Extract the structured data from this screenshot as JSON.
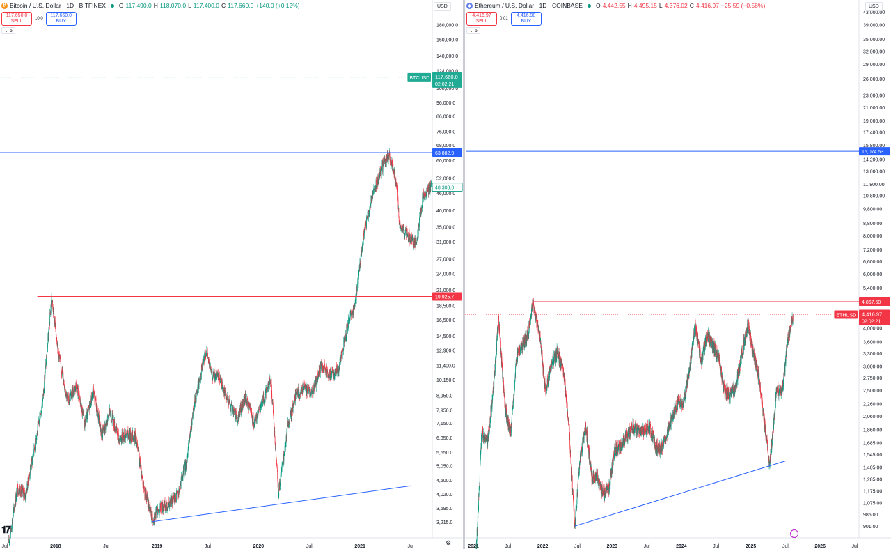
{
  "btc": {
    "symbol": "Bitcoin / U.S. Dollar · 1D · BITFINEX",
    "icon": "bitcoin-icon",
    "ohlc": {
      "o": "117,490.0",
      "h": "118,070.0",
      "l": "117,400.0",
      "c": "117,660.0",
      "chg": "+140.0 (+0.12%)"
    },
    "sell_price": "117,650.0",
    "sell_label": "SELL",
    "spread": "10.0",
    "buy_price": "117,660.0",
    "buy_label": "BUY",
    "indicator_count": "6",
    "currency": "USD"
  },
  "eth": {
    "symbol": "Ethereum / U.S. Dollar · 1D · COINBASE",
    "icon": "ethereum-icon",
    "ohlc": {
      "o": "4,442.55",
      "h": "4,495.15",
      "l": "4,376.02",
      "c": "4,416.97",
      "chg": "−25.59 (−0.58%)"
    },
    "sell_price": "4,416.97",
    "sell_label": "SELL",
    "spread": "0.01",
    "buy_price": "4,416.98",
    "buy_label": "BUY",
    "indicator_count": "6",
    "currency": "USD"
  },
  "colors": {
    "up": "#089981",
    "down": "#f23645",
    "blue": "#2962ff",
    "red": "#f23645",
    "green": "#22ab94"
  },
  "chart_data": [
    {
      "type": "candlestick",
      "title": "Bitcoin / U.S. Dollar · 1D · BITFINEX",
      "scale": "log",
      "ylim": [
        2950,
        215000
      ],
      "x_ticks": [
        "Jul",
        "2018",
        "Jul",
        "2019",
        "Jul",
        "2020",
        "Jul",
        "2021",
        "Jul"
      ],
      "y_ticks": [
        "180,000.0",
        "160,000.0",
        "140,000.0",
        "124,000.0",
        "108,000.0",
        "96,000.0",
        "86,000.0",
        "76,000.0",
        "68,000.0",
        "60,000.0",
        "52,000.0",
        "46,000.0",
        "40,000.0",
        "35,000.0",
        "31,000.0",
        "27,000.0",
        "24,000.0",
        "21,000.0",
        "18,500.0",
        "16,500.0",
        "14,500.0",
        "12,900.0",
        "11,400.0",
        "10,150.0",
        "8,950.0",
        "7,950.0",
        "7,150.0",
        "6,350.0",
        "5,650.0",
        "5,050.0",
        "4,500.0",
        "4,020.0",
        "3,595.0",
        "3,215.0"
      ],
      "y_tick_values": [
        180000,
        160000,
        140000,
        124000,
        108000,
        96000,
        86000,
        76000,
        68000,
        60000,
        52000,
        46000,
        40000,
        35000,
        31000,
        27000,
        24000,
        21000,
        18500,
        16500,
        14500,
        12900,
        11400,
        10150,
        8950,
        7950,
        7150,
        6350,
        5650,
        5050,
        4500,
        4020,
        3595,
        3215
      ],
      "price_path": [
        [
          "2017-07",
          2700
        ],
        [
          "2017-08",
          4200
        ],
        [
          "2017-09",
          4000
        ],
        [
          "2017-10",
          5800
        ],
        [
          "2017-11",
          8500
        ],
        [
          "2017-12-17",
          19600
        ],
        [
          "2018-01",
          12000
        ],
        [
          "2018-02",
          8500
        ],
        [
          "2018-03",
          9800
        ],
        [
          "2018-04",
          7000
        ],
        [
          "2018-05",
          9300
        ],
        [
          "2018-06",
          6500
        ],
        [
          "2018-07",
          7800
        ],
        [
          "2018-08",
          6300
        ],
        [
          "2018-09",
          6500
        ],
        [
          "2018-10",
          6400
        ],
        [
          "2018-11",
          4200
        ],
        [
          "2018-12",
          3300
        ],
        [
          "2019-01",
          3600
        ],
        [
          "2019-02",
          3700
        ],
        [
          "2019-03",
          4000
        ],
        [
          "2019-04",
          5200
        ],
        [
          "2019-05",
          8500
        ],
        [
          "2019-06-26",
          13000
        ],
        [
          "2019-07",
          10500
        ],
        [
          "2019-08",
          10200
        ],
        [
          "2019-09",
          8500
        ],
        [
          "2019-10",
          7400
        ],
        [
          "2019-11",
          8800
        ],
        [
          "2019-12",
          7200
        ],
        [
          "2020-01",
          8500
        ],
        [
          "2020-02",
          10200
        ],
        [
          "2020-03-12",
          4000
        ],
        [
          "2020-04",
          7000
        ],
        [
          "2020-05",
          9000
        ],
        [
          "2020-06",
          9500
        ],
        [
          "2020-07",
          9200
        ],
        [
          "2020-08",
          11500
        ],
        [
          "2020-09",
          10500
        ],
        [
          "2020-10",
          11000
        ],
        [
          "2020-11",
          15500
        ],
        [
          "2020-12",
          19000
        ],
        [
          "2021-01",
          33000
        ],
        [
          "2021-02",
          45000
        ],
        [
          "2021-03",
          55000
        ],
        [
          "2021-04-14",
          63000
        ],
        [
          "2021-05",
          48000
        ],
        [
          "2021-05-19",
          36000
        ],
        [
          "2021-06",
          33000
        ],
        [
          "2021-07-20",
          30500
        ],
        [
          "2021-08",
          45000
        ],
        [
          "2021-09",
          48308
        ]
      ],
      "horizontal_lines": [
        {
          "label": "63,882.9",
          "value": 63882.9,
          "color": "#2962ff"
        },
        {
          "label": "19,925.7",
          "value": 19925.7,
          "color": "#f23645"
        }
      ],
      "trendline": [
        [
          "2018-12-15",
          3215
        ],
        [
          "2021-07-01",
          4300
        ]
      ],
      "price_labels": [
        {
          "label": "BTCUSD",
          "value": 117660.0,
          "price": "117,660.0",
          "countdown": "02:02:21",
          "color": "#22ab94"
        },
        {
          "label": "48,308.0",
          "value": 48308.0,
          "color": "#089981"
        }
      ]
    },
    {
      "type": "candlestick",
      "title": "Ethereum / U.S. Dollar · 1D · COINBASE",
      "scale": "log",
      "ylim": [
        860,
        46000
      ],
      "x_ticks": [
        "2021",
        "Jul",
        "2022",
        "Jul",
        "2023",
        "Jul",
        "2024",
        "Jul",
        "2025",
        "Jul",
        "2026",
        "Jul"
      ],
      "y_ticks": [
        "43,000.00",
        "39,000.00",
        "35,000.00",
        "32,000.00",
        "29,000.00",
        "26,000.00",
        "23,000.00",
        "21,000.00",
        "19,000.00",
        "17,400.00",
        "15,800.00",
        "14,200.00",
        "13,000.00",
        "11,800.00",
        "10,800.00",
        "9,800.00",
        "8,800.00",
        "8,000.00",
        "7,200.00",
        "6,600.00",
        "6,000.00",
        "5,400.00",
        "4,000.00",
        "3,600.00",
        "3,300.00",
        "3,000.00",
        "2,750.00",
        "2,500.00",
        "2,260.00",
        "2,060.00",
        "1,860.00",
        "1,685.00",
        "1,545.00",
        "1,405.00",
        "1,285.00",
        "1,175.00",
        "1,075.00",
        "985.00",
        "901.00"
      ],
      "y_tick_values": [
        43000,
        39000,
        35000,
        32000,
        29000,
        26000,
        23000,
        21000,
        19000,
        17400,
        15800,
        14200,
        13000,
        11800,
        10800,
        9800,
        8800,
        8000,
        7200,
        6600,
        6000,
        5400,
        4000,
        3600,
        3300,
        3000,
        2750,
        2500,
        2260,
        2060,
        1860,
        1685,
        1545,
        1405,
        1285,
        1175,
        1075,
        985,
        901
      ],
      "price_path": [
        [
          "2021-01",
          730
        ],
        [
          "2021-02",
          1800
        ],
        [
          "2021-03",
          1700
        ],
        [
          "2021-04",
          2500
        ],
        [
          "2021-05-12",
          4300
        ],
        [
          "2021-06",
          2200
        ],
        [
          "2021-07",
          1800
        ],
        [
          "2021-08",
          3200
        ],
        [
          "2021-09",
          3500
        ],
        [
          "2021-10",
          3800
        ],
        [
          "2021-11-10",
          4860
        ],
        [
          "2021-12",
          3800
        ],
        [
          "2022-01",
          2500
        ],
        [
          "2022-02",
          3000
        ],
        [
          "2022-03",
          3300
        ],
        [
          "2022-04",
          3000
        ],
        [
          "2022-05",
          2000
        ],
        [
          "2022-06-18",
          900
        ],
        [
          "2022-07",
          1500
        ],
        [
          "2022-08",
          1900
        ],
        [
          "2022-09",
          1300
        ],
        [
          "2022-10",
          1300
        ],
        [
          "2022-11",
          1150
        ],
        [
          "2022-12",
          1200
        ],
        [
          "2023-01",
          1600
        ],
        [
          "2023-02",
          1650
        ],
        [
          "2023-03",
          1750
        ],
        [
          "2023-04",
          1900
        ],
        [
          "2023-05",
          1850
        ],
        [
          "2023-06",
          1850
        ],
        [
          "2023-07",
          1900
        ],
        [
          "2023-08",
          1650
        ],
        [
          "2023-09",
          1600
        ],
        [
          "2023-10",
          1800
        ],
        [
          "2023-11",
          2050
        ],
        [
          "2023-12",
          2300
        ],
        [
          "2024-01",
          2300
        ],
        [
          "2024-02",
          3000
        ],
        [
          "2024-03-12",
          4050
        ],
        [
          "2024-04",
          3100
        ],
        [
          "2024-05",
          3800
        ],
        [
          "2024-06",
          3500
        ],
        [
          "2024-07",
          3200
        ],
        [
          "2024-08",
          2500
        ],
        [
          "2024-09",
          2400
        ],
        [
          "2024-10",
          2600
        ],
        [
          "2024-11",
          3300
        ],
        [
          "2024-12-16",
          4100
        ],
        [
          "2025-01",
          3300
        ],
        [
          "2025-02",
          2700
        ],
        [
          "2025-03",
          1900
        ],
        [
          "2025-04-09",
          1400
        ],
        [
          "2025-05",
          2500
        ],
        [
          "2025-06",
          2500
        ],
        [
          "2025-07",
          3700
        ],
        [
          "2025-08-12",
          4416.97
        ]
      ],
      "horizontal_lines": [
        {
          "label": "15,074.53",
          "value": 15074.53,
          "color": "#2962ff"
        },
        {
          "label": "4,867.60",
          "value": 4867.6,
          "color": "#f23645"
        }
      ],
      "trendline": [
        [
          "2022-06-18",
          901
        ],
        [
          "2025-07-01",
          1470
        ]
      ],
      "price_labels": [
        {
          "label": "ETHUSD",
          "value": 4416.97,
          "price": "4,416.97",
          "countdown": "02:02:21",
          "color": "#f23645"
        }
      ]
    }
  ]
}
